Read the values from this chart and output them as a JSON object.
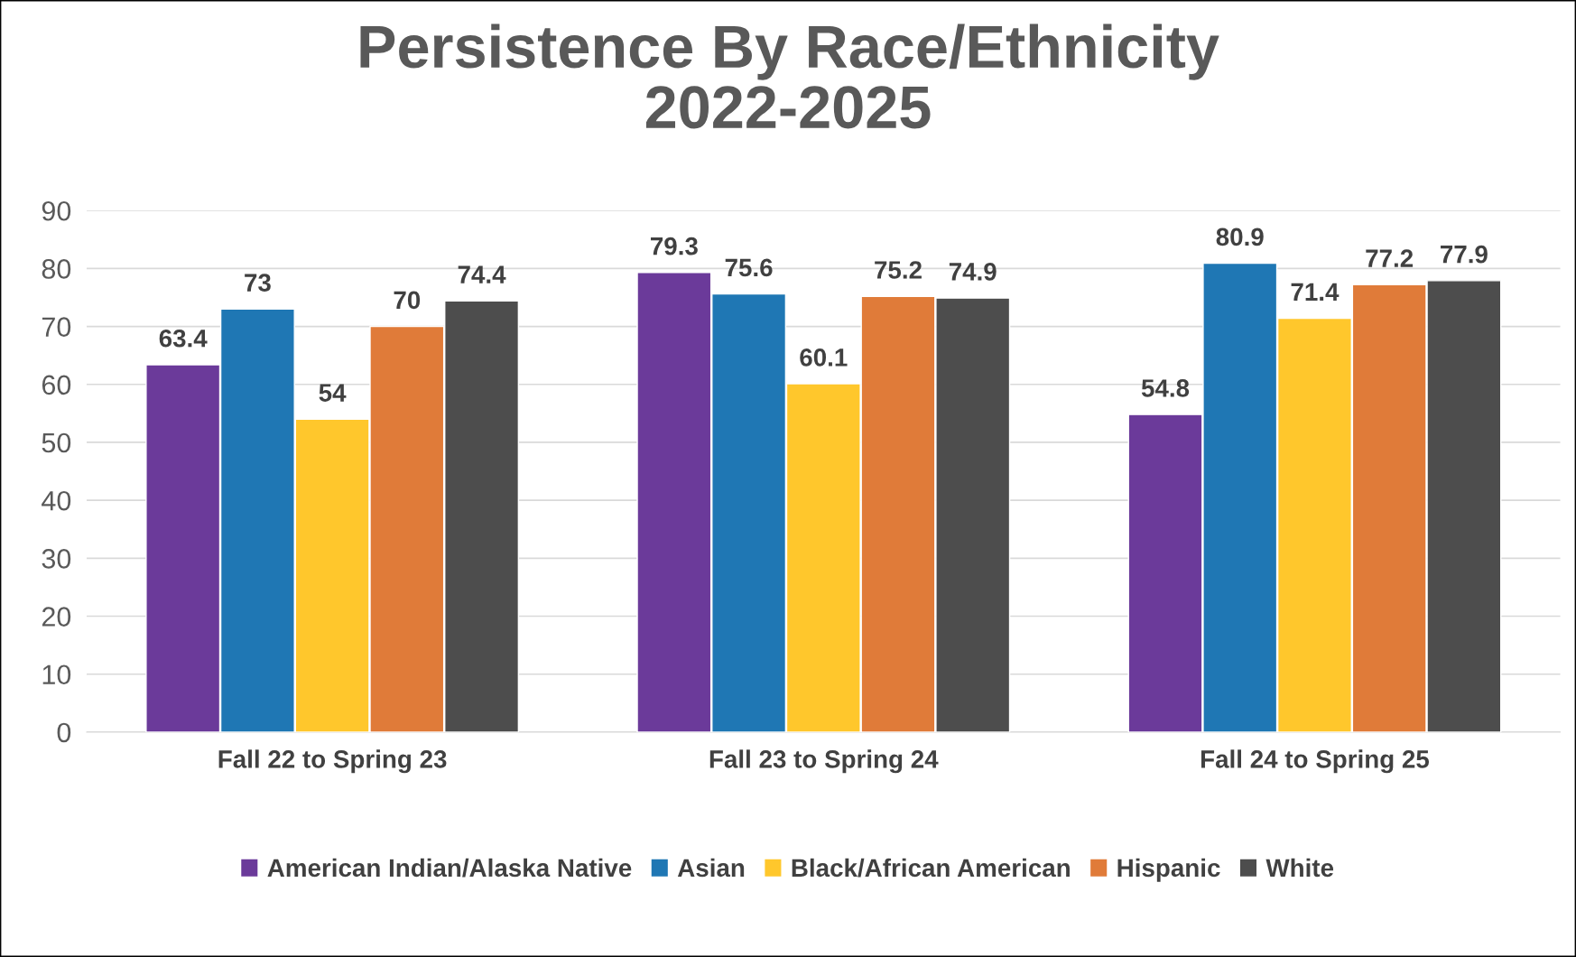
{
  "chart_data": {
    "type": "bar",
    "title": "Persistence By Race/Ethnicity\n2022-2025",
    "categories": [
      "Fall 22 to Spring 23",
      "Fall 23 to Spring 24",
      "Fall 24 to Spring 25"
    ],
    "series": [
      {
        "name": "American Indian/Alaska Native",
        "color": "#6b3a9a",
        "values": [
          63.4,
          79.3,
          54.8
        ]
      },
      {
        "name": "Asian",
        "color": "#1f77b4",
        "values": [
          73,
          75.6,
          80.9
        ]
      },
      {
        "name": "Black/African American",
        "color": "#ffc72c",
        "values": [
          54,
          60.1,
          71.4
        ]
      },
      {
        "name": "Hispanic",
        "color": "#e07b39",
        "values": [
          70,
          75.2,
          77.2
        ]
      },
      {
        "name": "White",
        "color": "#4d4d4d",
        "values": [
          74.4,
          74.9,
          77.9
        ]
      }
    ],
    "ylim": [
      0,
      90
    ],
    "yticks": [
      0,
      10,
      20,
      30,
      40,
      50,
      60,
      70,
      80,
      90
    ],
    "grid": "y",
    "legend": "bottom",
    "data_labels": true
  }
}
